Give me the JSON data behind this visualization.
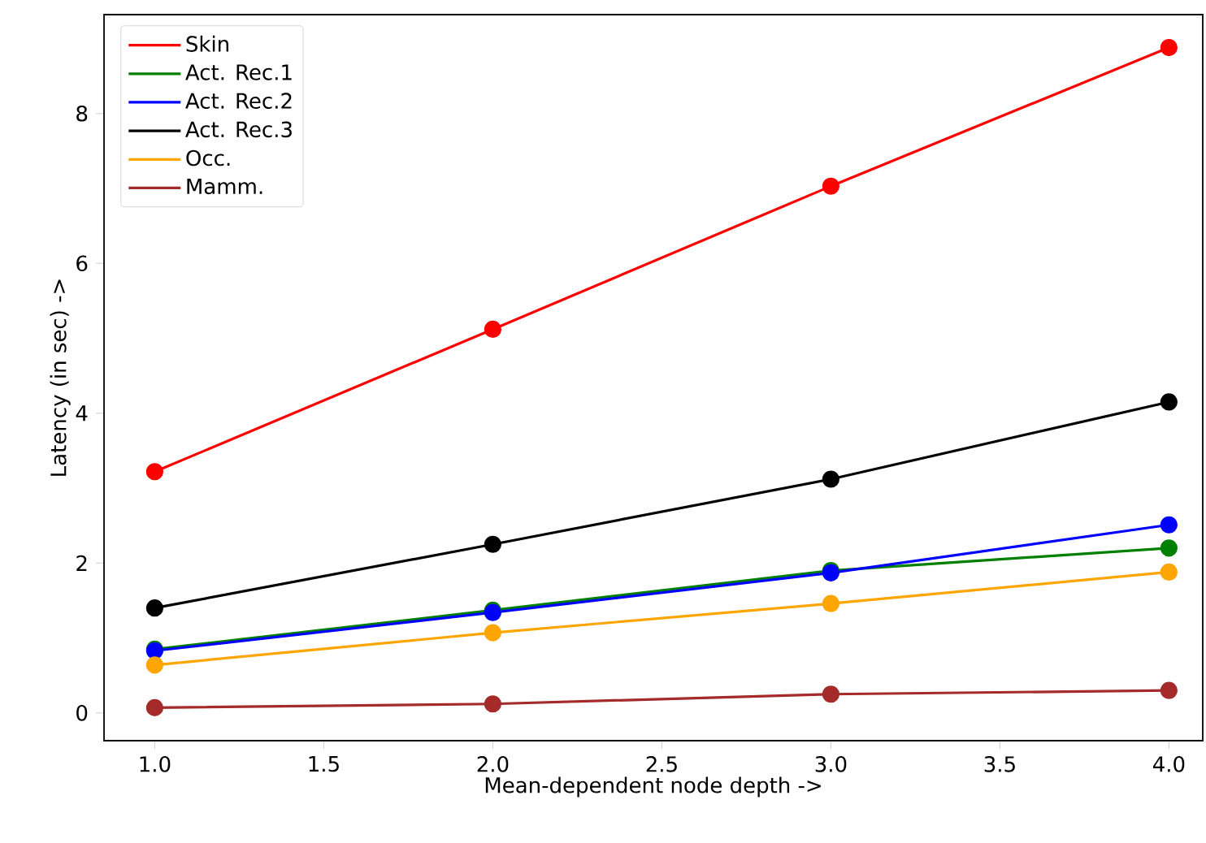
{
  "chart_data": {
    "type": "line",
    "xlabel": "Mean-dependent node depth ->",
    "ylabel": "Latency (in sec) ->",
    "x": [
      1.0,
      2.0,
      3.0,
      4.0
    ],
    "series": [
      {
        "name": "Skin",
        "color": "#ff0000",
        "values": [
          3.22,
          5.12,
          7.03,
          8.88
        ]
      },
      {
        "name": "Act. Rec.1",
        "color": "#008000",
        "values": [
          0.85,
          1.37,
          1.9,
          2.2
        ]
      },
      {
        "name": "Act. Rec.2",
        "color": "#0000ff",
        "values": [
          0.83,
          1.34,
          1.87,
          2.51
        ]
      },
      {
        "name": "Act. Rec.3",
        "color": "#000000",
        "values": [
          1.4,
          2.25,
          3.12,
          4.15
        ]
      },
      {
        "name": "Occ.",
        "color": "#ffa500",
        "values": [
          0.64,
          1.07,
          1.46,
          1.88
        ]
      },
      {
        "name": "Mamm.",
        "color": "#a52a2a",
        "values": [
          0.07,
          0.12,
          0.25,
          0.3
        ]
      }
    ],
    "xlim": [
      0.85,
      4.1
    ],
    "ylim": [
      -0.37,
      9.32
    ],
    "xticks": [
      {
        "value": 1.0,
        "label": "1.0"
      },
      {
        "value": 1.5,
        "label": "1.5"
      },
      {
        "value": 2.0,
        "label": "2.0"
      },
      {
        "value": 2.5,
        "label": "2.5"
      },
      {
        "value": 3.0,
        "label": "3.0"
      },
      {
        "value": 3.5,
        "label": "3.5"
      },
      {
        "value": 4.0,
        "label": "4.0"
      }
    ],
    "yticks": [
      0,
      2,
      4,
      6,
      8
    ],
    "grid": false,
    "legend": "top left",
    "marker": "circle",
    "line_style": "solid"
  }
}
